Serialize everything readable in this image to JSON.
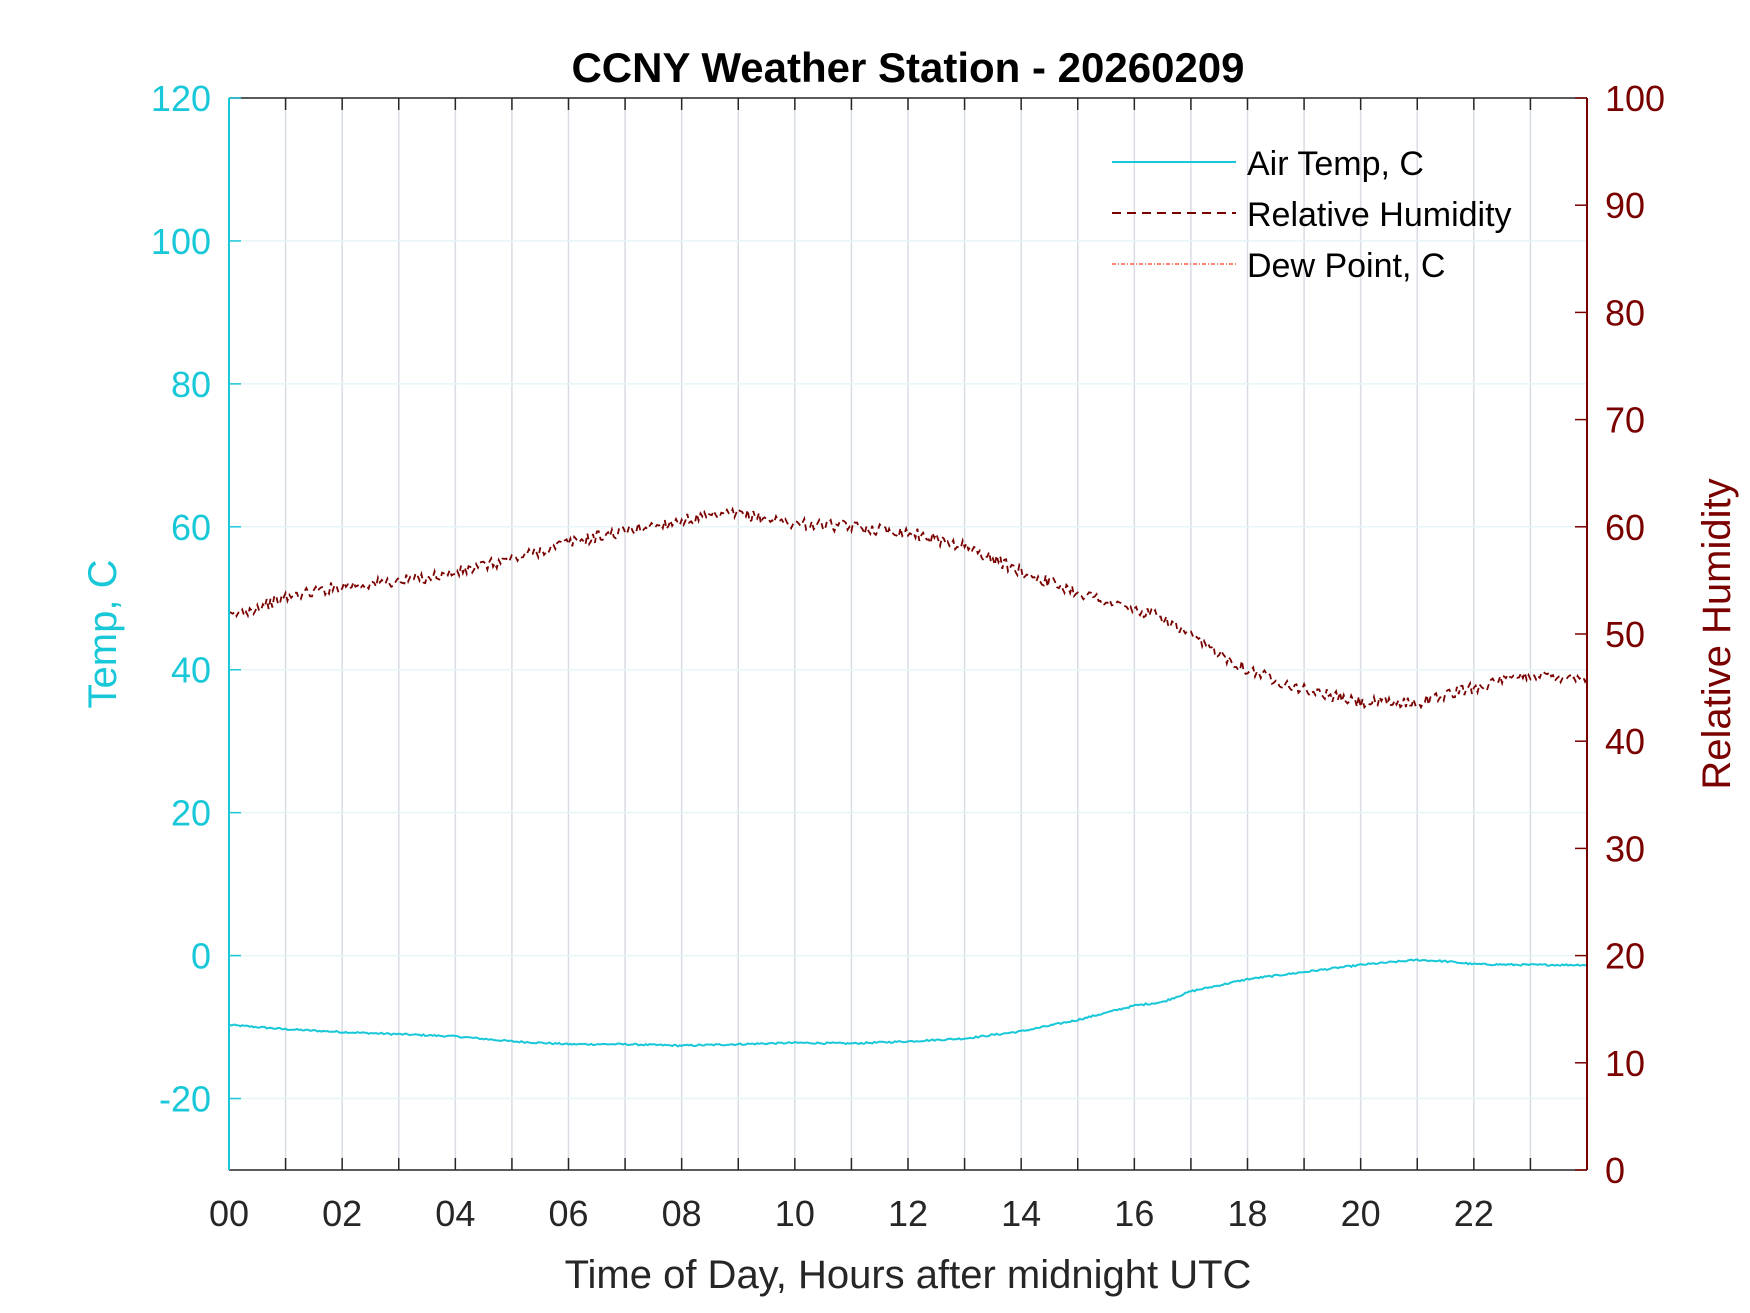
{
  "colors": {
    "temp": "#19c8d8",
    "rh": "#7a0000",
    "dew": "#ff5a40",
    "grid": "#d8dde3",
    "axis": "#262626"
  },
  "chart_data": {
    "type": "line",
    "title": "CCNY Weather Station - 20260209",
    "xlabel": "Time of Day, Hours after midnight UTC",
    "ylabel_left": "Temp, C",
    "ylabel_right": "Relative Humidity",
    "xlim": [
      0,
      24
    ],
    "ylim_left": [
      -30,
      120
    ],
    "ylim_right": [
      0,
      100
    ],
    "x_ticks": [
      "00",
      "02",
      "04",
      "06",
      "08",
      "10",
      "12",
      "14",
      "16",
      "18",
      "20",
      "22"
    ],
    "y_left_ticks": [
      "120",
      "100",
      "80",
      "60",
      "40",
      "20",
      "0",
      "-20"
    ],
    "y_right_ticks": [
      "100",
      "90",
      "80",
      "70",
      "60",
      "50",
      "40",
      "30",
      "20",
      "10",
      "0"
    ],
    "grid": true,
    "legend_position": "top-right",
    "series": [
      {
        "name": "Air Temp, C",
        "axis": "left",
        "style": "solid",
        "x": [
          0,
          1,
          2,
          3,
          4,
          5,
          6,
          7,
          8,
          9,
          10,
          11,
          12,
          13,
          14,
          15,
          16,
          16.5,
          17,
          18,
          19,
          20,
          21,
          21.5,
          22,
          23,
          24
        ],
        "values": [
          -9.7,
          -10.3,
          -10.7,
          -11.0,
          -11.3,
          -12.0,
          -12.4,
          -12.4,
          -12.6,
          -12.4,
          -12.2,
          -12.3,
          -12.0,
          -11.6,
          -10.6,
          -9.0,
          -7.0,
          -6.5,
          -5.0,
          -3.3,
          -2.3,
          -1.3,
          -0.6,
          -0.8,
          -1.2,
          -1.3,
          -1.3
        ]
      },
      {
        "name": "Relative Humidity",
        "axis": "right",
        "style": "dashed",
        "x": [
          0,
          1,
          2,
          3,
          4,
          5,
          6,
          7,
          8,
          9,
          10,
          11,
          12,
          13,
          14,
          15,
          16,
          16.5,
          17,
          18,
          19,
          20,
          21,
          22,
          23,
          24
        ],
        "values": [
          51.6,
          53.4,
          54.5,
          54.9,
          55.7,
          57.0,
          58.5,
          59.6,
          60.6,
          61.2,
          60.3,
          60.0,
          59.5,
          58.2,
          55.8,
          53.9,
          52.2,
          51.5,
          49.7,
          46.7,
          44.8,
          43.6,
          43.6,
          45.0,
          46.2,
          45.9
        ]
      },
      {
        "name": "Dew Point, C",
        "axis": "left",
        "style": "dashdot",
        "x": [],
        "values": []
      }
    ]
  }
}
